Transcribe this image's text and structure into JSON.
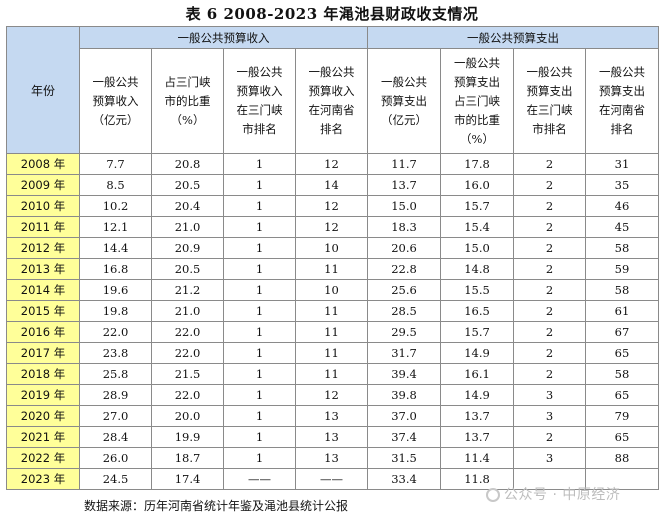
{
  "title": "表 6  2008-2023 年渑池县财政收支情况",
  "header": {
    "year": "年份",
    "group_income": "一般公共预算收入",
    "group_expense": "一般公共预算支出",
    "columns": [
      "一般公共预算收入（亿元）",
      "占三门峡市的比重（%）",
      "一般公共预算收入在三门峡市排名",
      "一般公共预算收入在河南省排名",
      "一般公共预算支出（亿元）",
      "一般公共预算支出占三门峡市的比重（%）",
      "一般公共预算支出在三门峡市排名",
      "一般公共预算支出在河南省排名"
    ]
  },
  "rows": [
    [
      "2008 年",
      "7.7",
      "20.8",
      "1",
      "12",
      "11.7",
      "17.8",
      "2",
      "31"
    ],
    [
      "2009 年",
      "8.5",
      "20.5",
      "1",
      "14",
      "13.7",
      "16.0",
      "2",
      "35"
    ],
    [
      "2010 年",
      "10.2",
      "20.4",
      "1",
      "12",
      "15.0",
      "15.7",
      "2",
      "46"
    ],
    [
      "2011 年",
      "12.1",
      "21.0",
      "1",
      "12",
      "18.3",
      "15.4",
      "2",
      "45"
    ],
    [
      "2012 年",
      "14.4",
      "20.9",
      "1",
      "10",
      "20.6",
      "15.0",
      "2",
      "58"
    ],
    [
      "2013 年",
      "16.8",
      "20.5",
      "1",
      "11",
      "22.8",
      "14.8",
      "2",
      "59"
    ],
    [
      "2014 年",
      "19.6",
      "21.2",
      "1",
      "10",
      "25.6",
      "15.5",
      "2",
      "58"
    ],
    [
      "2015 年",
      "19.8",
      "21.0",
      "1",
      "11",
      "28.5",
      "16.5",
      "2",
      "61"
    ],
    [
      "2016 年",
      "22.0",
      "22.0",
      "1",
      "11",
      "29.5",
      "15.7",
      "2",
      "67"
    ],
    [
      "2017 年",
      "23.8",
      "22.0",
      "1",
      "11",
      "31.7",
      "14.9",
      "2",
      "65"
    ],
    [
      "2018 年",
      "25.8",
      "21.5",
      "1",
      "11",
      "39.4",
      "16.1",
      "2",
      "58"
    ],
    [
      "2019 年",
      "28.9",
      "22.0",
      "1",
      "12",
      "39.8",
      "14.9",
      "3",
      "65"
    ],
    [
      "2020 年",
      "27.0",
      "20.0",
      "1",
      "13",
      "37.0",
      "13.7",
      "3",
      "79"
    ],
    [
      "2021 年",
      "28.4",
      "19.9",
      "1",
      "13",
      "37.4",
      "13.7",
      "2",
      "65"
    ],
    [
      "2022 年",
      "26.0",
      "18.7",
      "1",
      "13",
      "31.5",
      "11.4",
      "3",
      "88"
    ],
    [
      "2023 年",
      "24.5",
      "17.4",
      "——",
      "——",
      "33.4",
      "11.8",
      "",
      ""
    ]
  ],
  "source": "数据来源：历年河南省统计年鉴及渑池县统计公报",
  "watermark": "公众号 · 中原经济"
}
